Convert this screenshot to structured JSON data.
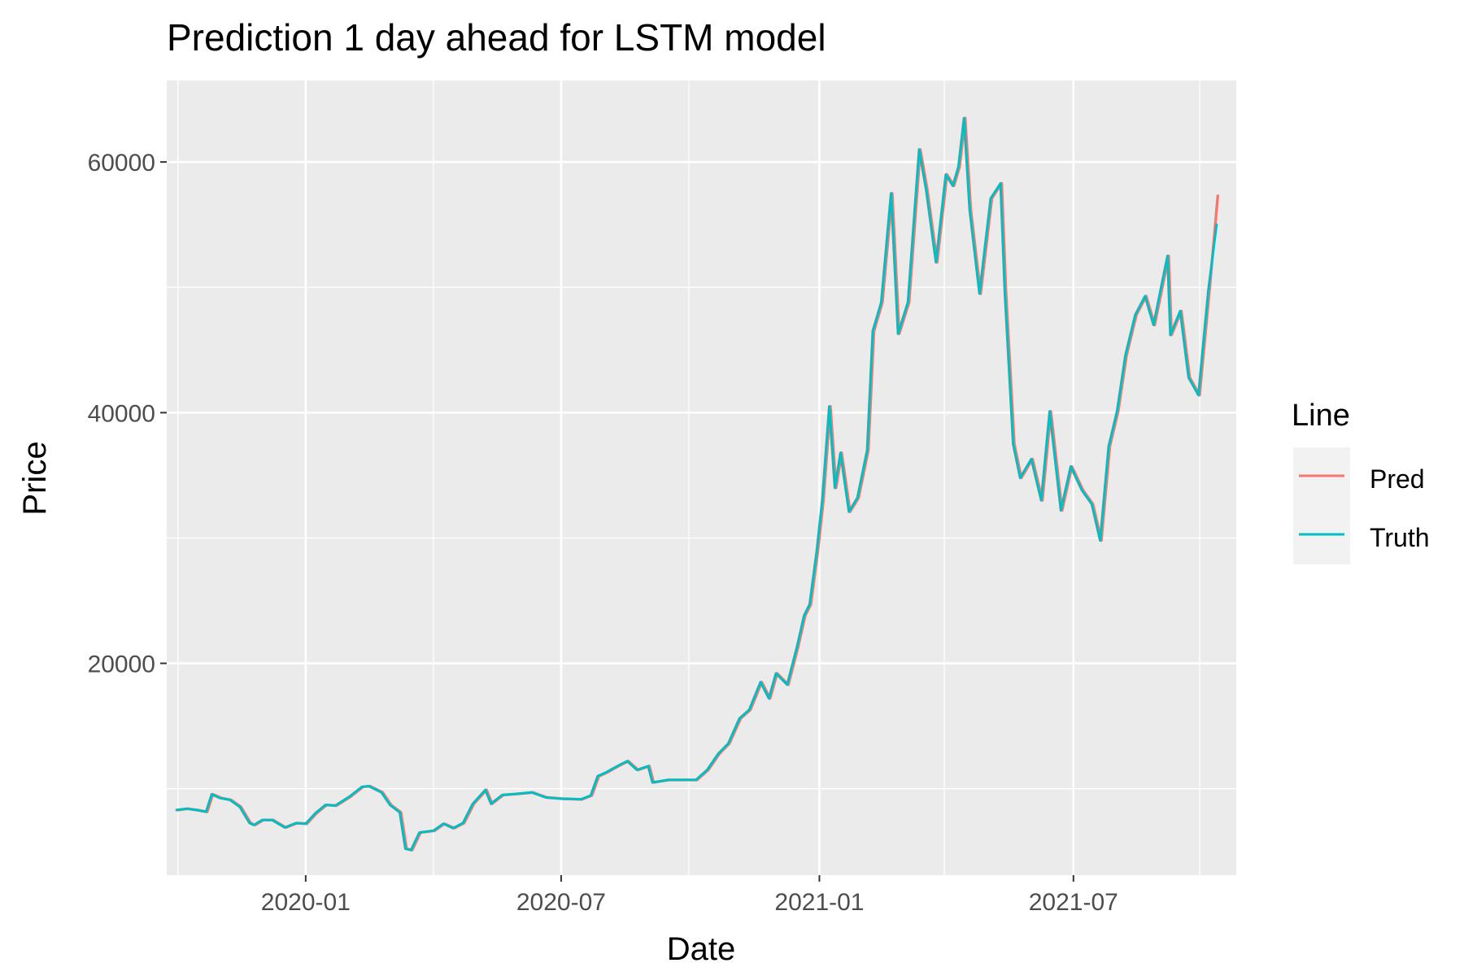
{
  "chart_data": {
    "type": "line",
    "title": "Prediction 1 day ahead for LSTM model",
    "xlabel": "Date",
    "ylabel": "Price",
    "x_type": "date",
    "xlim": [
      "2019-09-24",
      "2021-10-25"
    ],
    "ylim": [
      3100,
      66500
    ],
    "x_ticks": [
      "2020-01-01",
      "2020-07-01",
      "2021-01-01",
      "2021-07-01"
    ],
    "x_tick_labels": [
      "2020-01",
      "2020-07",
      "2021-01",
      "2021-07"
    ],
    "y_ticks": [
      20000,
      40000,
      60000
    ],
    "y_tick_labels": [
      "20000",
      "40000",
      "60000"
    ],
    "grid": true,
    "legend": {
      "title": "Line",
      "position": "right"
    },
    "series": [
      {
        "name": "Pred",
        "color": "#F8766D",
        "points": [
          [
            "2019-10-01",
            8300
          ],
          [
            "2019-10-08",
            8400
          ],
          [
            "2019-10-15",
            8300
          ],
          [
            "2019-10-22",
            8150
          ],
          [
            "2019-10-26",
            9550
          ],
          [
            "2019-11-01",
            9250
          ],
          [
            "2019-11-08",
            9100
          ],
          [
            "2019-11-15",
            8550
          ],
          [
            "2019-11-22",
            7250
          ],
          [
            "2019-11-25",
            7100
          ],
          [
            "2019-12-01",
            7500
          ],
          [
            "2019-12-08",
            7500
          ],
          [
            "2019-12-17",
            6900
          ],
          [
            "2019-12-25",
            7250
          ],
          [
            "2020-01-01",
            7200
          ],
          [
            "2020-01-08",
            8050
          ],
          [
            "2020-01-15",
            8700
          ],
          [
            "2020-01-22",
            8650
          ],
          [
            "2020-02-01",
            9350
          ],
          [
            "2020-02-10",
            10150
          ],
          [
            "2020-02-15",
            10200
          ],
          [
            "2020-02-24",
            9700
          ],
          [
            "2020-03-01",
            8700
          ],
          [
            "2020-03-08",
            8100
          ],
          [
            "2020-03-12",
            5200
          ],
          [
            "2020-03-16",
            5100
          ],
          [
            "2020-03-22",
            6500
          ],
          [
            "2020-04-01",
            6650
          ],
          [
            "2020-04-08",
            7200
          ],
          [
            "2020-04-15",
            6850
          ],
          [
            "2020-04-22",
            7250
          ],
          [
            "2020-04-29",
            8800
          ],
          [
            "2020-05-08",
            9900
          ],
          [
            "2020-05-12",
            8800
          ],
          [
            "2020-05-20",
            9500
          ],
          [
            "2020-06-01",
            9600
          ],
          [
            "2020-06-10",
            9700
          ],
          [
            "2020-06-20",
            9300
          ],
          [
            "2020-07-01",
            9200
          ],
          [
            "2020-07-15",
            9150
          ],
          [
            "2020-07-22",
            9450
          ],
          [
            "2020-07-27",
            11000
          ],
          [
            "2020-08-02",
            11300
          ],
          [
            "2020-08-10",
            11800
          ],
          [
            "2020-08-17",
            12200
          ],
          [
            "2020-08-24",
            11500
          ],
          [
            "2020-09-01",
            11800
          ],
          [
            "2020-09-04",
            10500
          ],
          [
            "2020-09-15",
            10700
          ],
          [
            "2020-09-25",
            10700
          ],
          [
            "2020-10-05",
            10700
          ],
          [
            "2020-10-13",
            11500
          ],
          [
            "2020-10-21",
            12800
          ],
          [
            "2020-10-28",
            13600
          ],
          [
            "2020-11-05",
            15600
          ],
          [
            "2020-11-12",
            16300
          ],
          [
            "2020-11-20",
            18500
          ],
          [
            "2020-11-26",
            17200
          ],
          [
            "2020-12-01",
            19200
          ],
          [
            "2020-12-09",
            18300
          ],
          [
            "2020-12-16",
            21300
          ],
          [
            "2020-12-21",
            23800
          ],
          [
            "2020-12-25",
            24700
          ],
          [
            "2020-12-30",
            28900
          ],
          [
            "2021-01-03",
            33000
          ],
          [
            "2021-01-08",
            40500
          ],
          [
            "2021-01-12",
            34000
          ],
          [
            "2021-01-16",
            36800
          ],
          [
            "2021-01-22",
            32100
          ],
          [
            "2021-01-28",
            33200
          ],
          [
            "2021-02-04",
            37000
          ],
          [
            "2021-02-08",
            46500
          ],
          [
            "2021-02-14",
            48800
          ],
          [
            "2021-02-21",
            57500
          ],
          [
            "2021-02-26",
            46300
          ],
          [
            "2021-03-05",
            48800
          ],
          [
            "2021-03-13",
            61000
          ],
          [
            "2021-03-18",
            57800
          ],
          [
            "2021-03-25",
            52000
          ],
          [
            "2021-04-01",
            59000
          ],
          [
            "2021-04-06",
            58100
          ],
          [
            "2021-04-10",
            59600
          ],
          [
            "2021-04-14",
            63500
          ],
          [
            "2021-04-18",
            56200
          ],
          [
            "2021-04-25",
            49500
          ],
          [
            "2021-05-03",
            57100
          ],
          [
            "2021-05-10",
            58300
          ],
          [
            "2021-05-13",
            49700
          ],
          [
            "2021-05-19",
            37500
          ],
          [
            "2021-05-24",
            34800
          ],
          [
            "2021-06-01",
            36300
          ],
          [
            "2021-06-08",
            33000
          ],
          [
            "2021-06-14",
            40100
          ],
          [
            "2021-06-22",
            32200
          ],
          [
            "2021-06-29",
            35700
          ],
          [
            "2021-07-07",
            33800
          ],
          [
            "2021-07-14",
            32700
          ],
          [
            "2021-07-20",
            29800
          ],
          [
            "2021-07-26",
            37300
          ],
          [
            "2021-08-01",
            40100
          ],
          [
            "2021-08-07",
            44600
          ],
          [
            "2021-08-14",
            47800
          ],
          [
            "2021-08-21",
            49300
          ],
          [
            "2021-08-27",
            47000
          ],
          [
            "2021-09-06",
            52500
          ],
          [
            "2021-09-08",
            46200
          ],
          [
            "2021-09-15",
            48100
          ],
          [
            "2021-09-21",
            42800
          ],
          [
            "2021-09-28",
            41400
          ],
          [
            "2021-10-05",
            49700
          ],
          [
            "2021-10-11",
            57300
          ]
        ]
      },
      {
        "name": "Truth",
        "color": "#00BFC4",
        "points": [
          [
            "2019-10-01",
            8300
          ],
          [
            "2019-10-08",
            8400
          ],
          [
            "2019-10-15",
            8300
          ],
          [
            "2019-10-22",
            8150
          ],
          [
            "2019-10-26",
            9550
          ],
          [
            "2019-11-01",
            9250
          ],
          [
            "2019-11-08",
            9100
          ],
          [
            "2019-11-15",
            8550
          ],
          [
            "2019-11-22",
            7250
          ],
          [
            "2019-11-25",
            7100
          ],
          [
            "2019-12-01",
            7500
          ],
          [
            "2019-12-08",
            7500
          ],
          [
            "2019-12-17",
            6900
          ],
          [
            "2019-12-25",
            7250
          ],
          [
            "2020-01-01",
            7200
          ],
          [
            "2020-01-08",
            8050
          ],
          [
            "2020-01-15",
            8700
          ],
          [
            "2020-01-22",
            8650
          ],
          [
            "2020-02-01",
            9350
          ],
          [
            "2020-02-10",
            10150
          ],
          [
            "2020-02-15",
            10200
          ],
          [
            "2020-02-24",
            9700
          ],
          [
            "2020-03-01",
            8700
          ],
          [
            "2020-03-08",
            8100
          ],
          [
            "2020-03-12",
            5200
          ],
          [
            "2020-03-16",
            5100
          ],
          [
            "2020-03-22",
            6500
          ],
          [
            "2020-04-01",
            6650
          ],
          [
            "2020-04-08",
            7200
          ],
          [
            "2020-04-15",
            6850
          ],
          [
            "2020-04-22",
            7250
          ],
          [
            "2020-04-29",
            8800
          ],
          [
            "2020-05-08",
            9900
          ],
          [
            "2020-05-12",
            8800
          ],
          [
            "2020-05-20",
            9500
          ],
          [
            "2020-06-01",
            9600
          ],
          [
            "2020-06-10",
            9700
          ],
          [
            "2020-06-20",
            9300
          ],
          [
            "2020-07-01",
            9200
          ],
          [
            "2020-07-15",
            9150
          ],
          [
            "2020-07-22",
            9450
          ],
          [
            "2020-07-27",
            11000
          ],
          [
            "2020-08-02",
            11300
          ],
          [
            "2020-08-10",
            11800
          ],
          [
            "2020-08-17",
            12200
          ],
          [
            "2020-08-24",
            11500
          ],
          [
            "2020-09-01",
            11800
          ],
          [
            "2020-09-04",
            10500
          ],
          [
            "2020-09-15",
            10700
          ],
          [
            "2020-09-25",
            10700
          ],
          [
            "2020-10-05",
            10700
          ],
          [
            "2020-10-13",
            11500
          ],
          [
            "2020-10-21",
            12800
          ],
          [
            "2020-10-28",
            13600
          ],
          [
            "2020-11-05",
            15600
          ],
          [
            "2020-11-12",
            16300
          ],
          [
            "2020-11-20",
            18500
          ],
          [
            "2020-11-26",
            17200
          ],
          [
            "2020-12-01",
            19200
          ],
          [
            "2020-12-09",
            18300
          ],
          [
            "2020-12-16",
            21300
          ],
          [
            "2020-12-21",
            23800
          ],
          [
            "2020-12-25",
            24700
          ],
          [
            "2020-12-30",
            28900
          ],
          [
            "2021-01-03",
            33000
          ],
          [
            "2021-01-08",
            40500
          ],
          [
            "2021-01-12",
            34000
          ],
          [
            "2021-01-16",
            36800
          ],
          [
            "2021-01-22",
            32100
          ],
          [
            "2021-01-28",
            33200
          ],
          [
            "2021-02-04",
            37000
          ],
          [
            "2021-02-08",
            46500
          ],
          [
            "2021-02-14",
            48800
          ],
          [
            "2021-02-21",
            57500
          ],
          [
            "2021-02-26",
            46300
          ],
          [
            "2021-03-05",
            48800
          ],
          [
            "2021-03-13",
            61000
          ],
          [
            "2021-03-18",
            57800
          ],
          [
            "2021-03-25",
            52000
          ],
          [
            "2021-04-01",
            59000
          ],
          [
            "2021-04-06",
            58100
          ],
          [
            "2021-04-10",
            59600
          ],
          [
            "2021-04-14",
            63500
          ],
          [
            "2021-04-18",
            56200
          ],
          [
            "2021-04-25",
            49500
          ],
          [
            "2021-05-03",
            57100
          ],
          [
            "2021-05-10",
            58300
          ],
          [
            "2021-05-13",
            49700
          ],
          [
            "2021-05-19",
            37500
          ],
          [
            "2021-05-24",
            34800
          ],
          [
            "2021-06-01",
            36300
          ],
          [
            "2021-06-08",
            33000
          ],
          [
            "2021-06-14",
            40100
          ],
          [
            "2021-06-22",
            32200
          ],
          [
            "2021-06-29",
            35700
          ],
          [
            "2021-07-07",
            33800
          ],
          [
            "2021-07-14",
            32700
          ],
          [
            "2021-07-20",
            29800
          ],
          [
            "2021-07-26",
            37300
          ],
          [
            "2021-08-01",
            40100
          ],
          [
            "2021-08-07",
            44600
          ],
          [
            "2021-08-14",
            47800
          ],
          [
            "2021-08-21",
            49300
          ],
          [
            "2021-08-27",
            47000
          ],
          [
            "2021-09-06",
            52500
          ],
          [
            "2021-09-08",
            46200
          ],
          [
            "2021-09-15",
            48100
          ],
          [
            "2021-09-21",
            42800
          ],
          [
            "2021-09-28",
            41400
          ],
          [
            "2021-10-05",
            49700
          ],
          [
            "2021-10-11",
            55000
          ]
        ]
      }
    ]
  },
  "colors": {
    "panel_background": "#EBEBEB",
    "grid_line": "#FFFFFF",
    "axis_text": "#4D4D4D",
    "legend_key_background": "#F2F2F2"
  }
}
